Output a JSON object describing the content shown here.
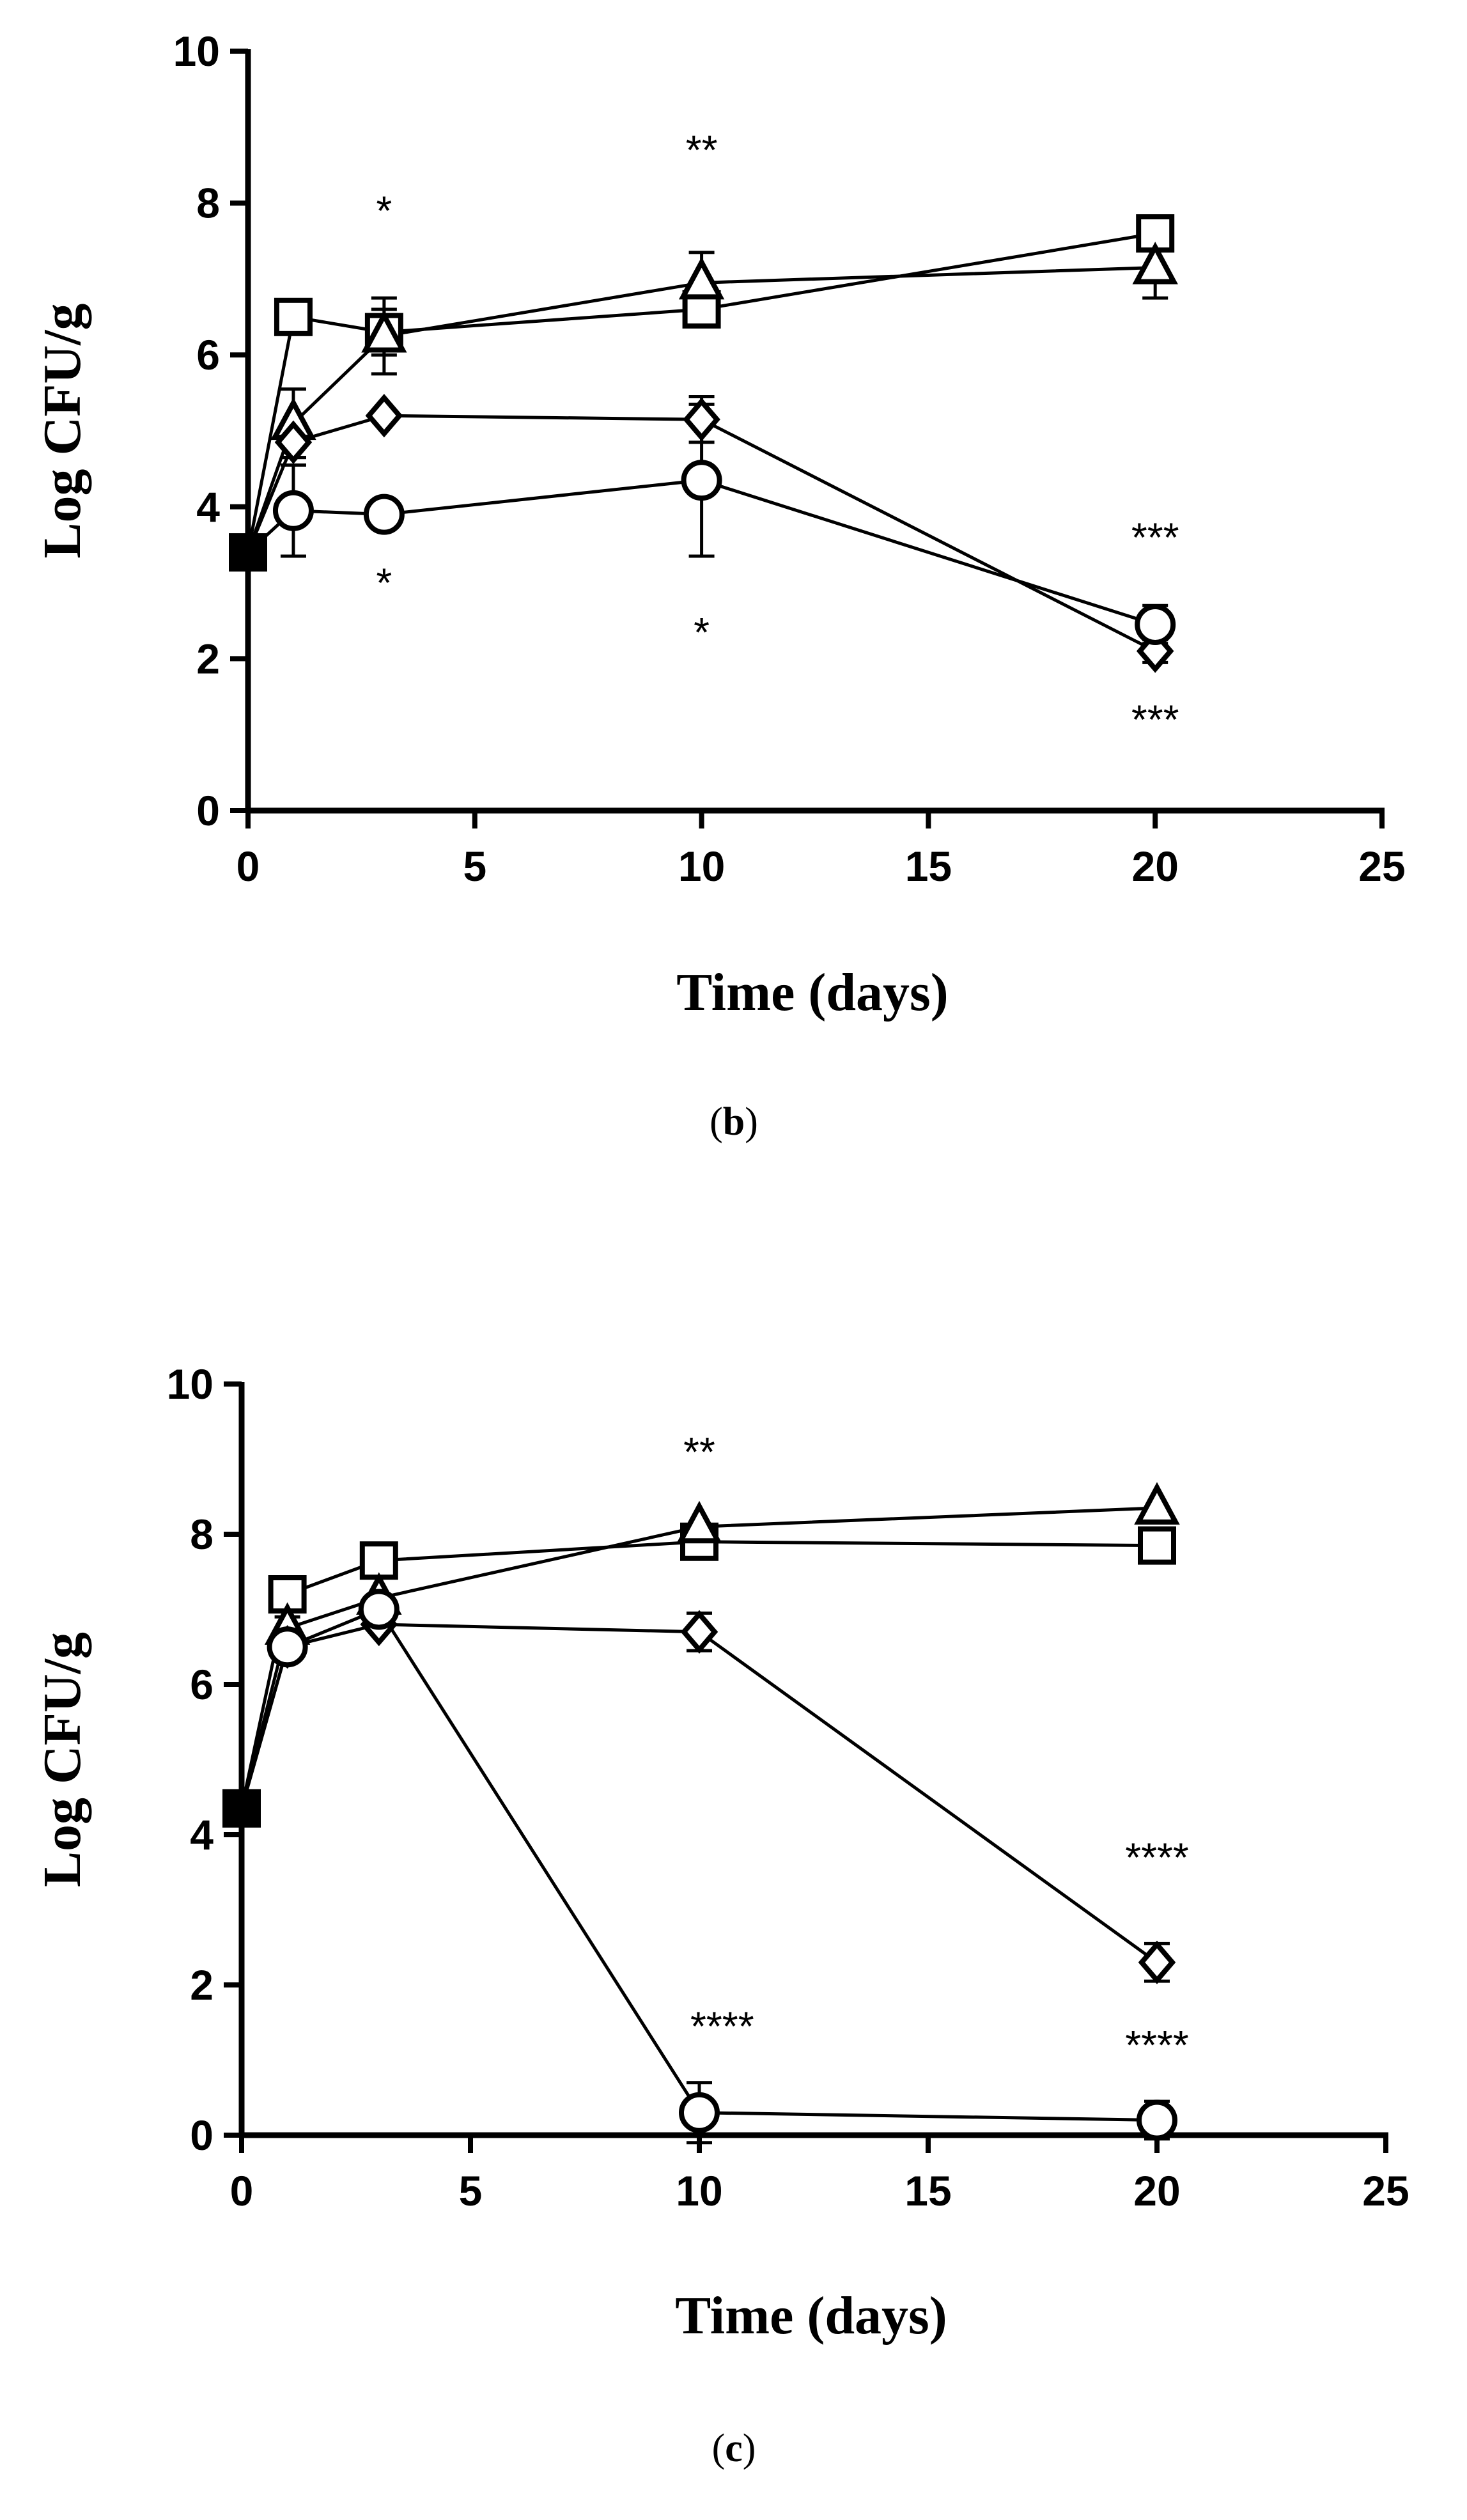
{
  "chart_data": [
    {
      "type": "line",
      "panel": "b",
      "caption": {
        "open": "(",
        "letter": "b",
        "close": ")"
      },
      "xlabel": "Time (days)",
      "ylabel": "Log CFU/g",
      "xlim": [
        0,
        25
      ],
      "ylim": [
        0,
        10
      ],
      "xticks": [
        0,
        5,
        10,
        15,
        20,
        25
      ],
      "yticks": [
        0,
        2,
        4,
        6,
        8,
        10
      ],
      "x": [
        0,
        1,
        3,
        10,
        20
      ],
      "series": [
        {
          "name": "square",
          "marker": "square",
          "values": [
            3.4,
            6.5,
            6.3,
            6.6,
            7.6
          ],
          "errors": [
            0.2,
            0.1,
            0.3,
            0.15,
            0.15
          ]
        },
        {
          "name": "triangle",
          "marker": "triangle",
          "values": [
            3.4,
            5.1,
            6.25,
            6.95,
            7.15
          ],
          "errors": [
            0.2,
            0.45,
            0.5,
            0.4,
            0.4
          ]
        },
        {
          "name": "diamond",
          "marker": "diamond",
          "values": [
            3.4,
            4.85,
            5.2,
            5.15,
            2.1
          ],
          "errors": [
            0.2,
            0.2,
            0.1,
            0.3,
            0.15
          ]
        },
        {
          "name": "circle",
          "marker": "circle",
          "values": [
            3.4,
            3.95,
            3.9,
            4.35,
            2.45
          ],
          "errors": [
            0.2,
            0.6,
            0.1,
            1.0,
            0.25
          ]
        }
      ],
      "annotations": [
        {
          "text": "*",
          "x": 3,
          "y": 7.9
        },
        {
          "text": "*",
          "x": 3,
          "y": 3.0
        },
        {
          "text": "**",
          "x": 10,
          "y": 8.7
        },
        {
          "text": "*",
          "x": 10,
          "y": 2.35
        },
        {
          "text": "***",
          "x": 20,
          "y": 3.6
        },
        {
          "text": "***",
          "x": 20,
          "y": 1.2
        }
      ]
    },
    {
      "type": "line",
      "panel": "c",
      "caption": {
        "open": "(",
        "letter": "c",
        "close": ")"
      },
      "xlabel": "Time (days)",
      "ylabel": "Log CFU/g",
      "xlim": [
        0,
        25
      ],
      "ylim": [
        0,
        10
      ],
      "xticks": [
        0,
        5,
        10,
        15,
        20,
        25
      ],
      "yticks": [
        0,
        2,
        4,
        6,
        8,
        10
      ],
      "x": [
        0,
        1,
        3,
        10,
        20
      ],
      "series": [
        {
          "name": "square",
          "marker": "square",
          "values": [
            4.35,
            7.2,
            7.65,
            7.9,
            7.85
          ],
          "errors": [
            0.1,
            0.1,
            0.1,
            0.1,
            0.1
          ]
        },
        {
          "name": "triangle",
          "marker": "triangle",
          "values": [
            4.35,
            6.75,
            7.15,
            8.1,
            8.35
          ],
          "errors": [
            0.1,
            0.15,
            0.1,
            0.1,
            0.1
          ]
        },
        {
          "name": "diamond",
          "marker": "diamond",
          "values": [
            4.35,
            6.5,
            6.8,
            6.7,
            2.3
          ],
          "errors": [
            0.1,
            0.1,
            0.1,
            0.25,
            0.25
          ]
        },
        {
          "name": "circle",
          "marker": "circle",
          "values": [
            4.35,
            6.5,
            7.0,
            0.3,
            0.2
          ],
          "errors": [
            0.1,
            0.1,
            0.1,
            0.4,
            0.25
          ]
        }
      ],
      "annotations": [
        {
          "text": "**",
          "x": 10,
          "y": 9.1
        },
        {
          "text": "****",
          "x": 20,
          "y": 3.7
        },
        {
          "text": "****",
          "x": 10.5,
          "y": 1.45
        },
        {
          "text": "****",
          "x": 20,
          "y": 1.2
        }
      ]
    }
  ]
}
